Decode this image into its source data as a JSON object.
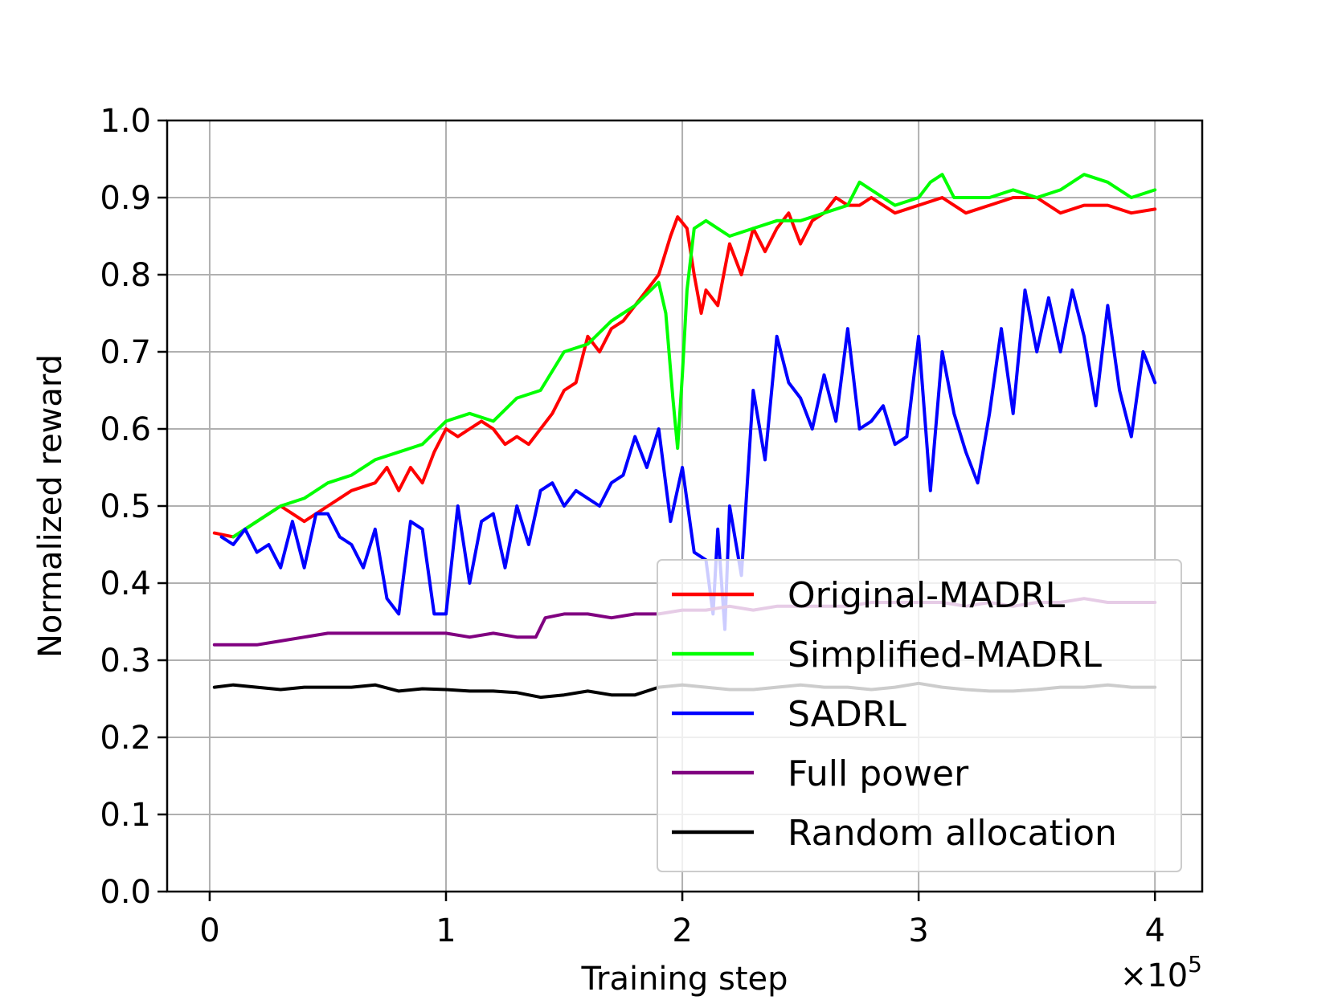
{
  "chart_data": {
    "type": "line",
    "xlabel": "Training step",
    "ylabel": "Normalized reward",
    "x_multiplier_label": "×10",
    "x_multiplier_exp": "5",
    "xlim": [
      -0.18,
      4.2
    ],
    "ylim": [
      0.0,
      1.0
    ],
    "xticks": [
      0,
      1,
      2,
      3,
      4
    ],
    "xtick_labels": [
      "0",
      "1",
      "2",
      "3",
      "4"
    ],
    "yticks": [
      0.0,
      0.1,
      0.2,
      0.3,
      0.4,
      0.5,
      0.6,
      0.7,
      0.8,
      0.9,
      1.0
    ],
    "ytick_labels": [
      "0.0",
      "0.1",
      "0.2",
      "0.3",
      "0.4",
      "0.5",
      "0.6",
      "0.7",
      "0.8",
      "0.9",
      "1.0"
    ],
    "grid": true,
    "legend_position": "lower-right",
    "series": [
      {
        "name": "Original-MADRL",
        "color": "#ff0000",
        "x": [
          0.02,
          0.1,
          0.2,
          0.3,
          0.35,
          0.4,
          0.5,
          0.55,
          0.6,
          0.7,
          0.75,
          0.8,
          0.85,
          0.9,
          0.95,
          1.0,
          1.05,
          1.1,
          1.15,
          1.2,
          1.25,
          1.3,
          1.35,
          1.4,
          1.45,
          1.5,
          1.55,
          1.6,
          1.65,
          1.7,
          1.75,
          1.8,
          1.85,
          1.9,
          1.95,
          1.98,
          2.02,
          2.05,
          2.08,
          2.1,
          2.15,
          2.2,
          2.25,
          2.3,
          2.35,
          2.4,
          2.45,
          2.5,
          2.55,
          2.6,
          2.65,
          2.7,
          2.75,
          2.8,
          2.9,
          3.0,
          3.1,
          3.2,
          3.3,
          3.4,
          3.5,
          3.6,
          3.7,
          3.8,
          3.9,
          4.0
        ],
        "y": [
          0.465,
          0.46,
          0.48,
          0.5,
          0.49,
          0.48,
          0.5,
          0.51,
          0.52,
          0.53,
          0.55,
          0.52,
          0.55,
          0.53,
          0.57,
          0.6,
          0.59,
          0.6,
          0.61,
          0.6,
          0.58,
          0.59,
          0.58,
          0.6,
          0.62,
          0.65,
          0.66,
          0.72,
          0.7,
          0.73,
          0.74,
          0.76,
          0.78,
          0.8,
          0.85,
          0.875,
          0.86,
          0.8,
          0.75,
          0.78,
          0.76,
          0.84,
          0.8,
          0.86,
          0.83,
          0.86,
          0.88,
          0.84,
          0.87,
          0.88,
          0.9,
          0.89,
          0.89,
          0.9,
          0.88,
          0.89,
          0.9,
          0.88,
          0.89,
          0.9,
          0.9,
          0.88,
          0.89,
          0.89,
          0.88,
          0.885
        ]
      },
      {
        "name": "Simplified-MADRL",
        "color": "#00ff00",
        "x": [
          0.1,
          0.2,
          0.3,
          0.4,
          0.5,
          0.6,
          0.7,
          0.8,
          0.9,
          1.0,
          1.1,
          1.2,
          1.3,
          1.4,
          1.5,
          1.6,
          1.7,
          1.8,
          1.9,
          1.93,
          1.96,
          1.98,
          2.0,
          2.02,
          2.05,
          2.1,
          2.15,
          2.2,
          2.3,
          2.4,
          2.5,
          2.6,
          2.7,
          2.75,
          2.8,
          2.9,
          3.0,
          3.05,
          3.1,
          3.15,
          3.2,
          3.3,
          3.4,
          3.5,
          3.6,
          3.7,
          3.8,
          3.9,
          4.0
        ],
        "y": [
          0.46,
          0.48,
          0.5,
          0.51,
          0.53,
          0.54,
          0.56,
          0.57,
          0.58,
          0.61,
          0.62,
          0.61,
          0.64,
          0.65,
          0.7,
          0.71,
          0.74,
          0.76,
          0.79,
          0.75,
          0.64,
          0.575,
          0.67,
          0.78,
          0.86,
          0.87,
          0.86,
          0.85,
          0.86,
          0.87,
          0.87,
          0.88,
          0.89,
          0.92,
          0.91,
          0.89,
          0.9,
          0.92,
          0.93,
          0.9,
          0.9,
          0.9,
          0.91,
          0.9,
          0.91,
          0.93,
          0.92,
          0.9,
          0.91
        ]
      },
      {
        "name": "SADRL",
        "color": "#0000ff",
        "x": [
          0.05,
          0.1,
          0.15,
          0.2,
          0.25,
          0.3,
          0.35,
          0.4,
          0.45,
          0.5,
          0.55,
          0.6,
          0.65,
          0.7,
          0.75,
          0.8,
          0.85,
          0.9,
          0.95,
          1.0,
          1.05,
          1.1,
          1.15,
          1.2,
          1.25,
          1.3,
          1.35,
          1.4,
          1.45,
          1.5,
          1.55,
          1.6,
          1.65,
          1.7,
          1.75,
          1.8,
          1.85,
          1.9,
          1.95,
          2.0,
          2.05,
          2.1,
          2.13,
          2.15,
          2.18,
          2.2,
          2.25,
          2.3,
          2.35,
          2.4,
          2.45,
          2.5,
          2.55,
          2.6,
          2.65,
          2.7,
          2.75,
          2.8,
          2.85,
          2.9,
          2.95,
          3.0,
          3.05,
          3.1,
          3.15,
          3.2,
          3.25,
          3.3,
          3.35,
          3.4,
          3.45,
          3.5,
          3.55,
          3.6,
          3.65,
          3.7,
          3.75,
          3.8,
          3.85,
          3.9,
          3.95,
          4.0
        ],
        "y": [
          0.46,
          0.45,
          0.47,
          0.44,
          0.45,
          0.42,
          0.48,
          0.42,
          0.49,
          0.49,
          0.46,
          0.45,
          0.42,
          0.47,
          0.38,
          0.36,
          0.48,
          0.47,
          0.36,
          0.36,
          0.5,
          0.4,
          0.48,
          0.49,
          0.42,
          0.5,
          0.45,
          0.52,
          0.53,
          0.5,
          0.52,
          0.51,
          0.5,
          0.53,
          0.54,
          0.59,
          0.55,
          0.6,
          0.48,
          0.55,
          0.44,
          0.43,
          0.36,
          0.47,
          0.34,
          0.5,
          0.41,
          0.65,
          0.56,
          0.72,
          0.66,
          0.64,
          0.6,
          0.67,
          0.61,
          0.73,
          0.6,
          0.61,
          0.63,
          0.58,
          0.59,
          0.72,
          0.52,
          0.7,
          0.62,
          0.57,
          0.53,
          0.62,
          0.73,
          0.62,
          0.78,
          0.7,
          0.77,
          0.7,
          0.78,
          0.72,
          0.63,
          0.76,
          0.65,
          0.59,
          0.7,
          0.66
        ]
      },
      {
        "name": "Full power",
        "color": "#800080",
        "x": [
          0.02,
          0.1,
          0.2,
          0.3,
          0.4,
          0.5,
          0.6,
          0.7,
          0.8,
          0.9,
          1.0,
          1.1,
          1.2,
          1.3,
          1.38,
          1.42,
          1.5,
          1.55,
          1.6,
          1.7,
          1.8,
          1.9,
          2.0,
          2.1,
          2.2,
          2.3,
          2.4,
          2.5,
          2.6,
          2.7,
          2.8,
          2.9,
          3.0,
          3.1,
          3.2,
          3.3,
          3.4,
          3.5,
          3.6,
          3.7,
          3.8,
          3.9,
          4.0
        ],
        "y": [
          0.32,
          0.32,
          0.32,
          0.325,
          0.33,
          0.335,
          0.335,
          0.335,
          0.335,
          0.335,
          0.335,
          0.33,
          0.335,
          0.33,
          0.33,
          0.355,
          0.36,
          0.36,
          0.36,
          0.355,
          0.36,
          0.36,
          0.365,
          0.365,
          0.37,
          0.365,
          0.37,
          0.37,
          0.37,
          0.37,
          0.375,
          0.375,
          0.375,
          0.375,
          0.37,
          0.375,
          0.37,
          0.375,
          0.375,
          0.38,
          0.375,
          0.375,
          0.375
        ]
      },
      {
        "name": "Random allocation",
        "color": "#000000",
        "x": [
          0.02,
          0.1,
          0.2,
          0.3,
          0.4,
          0.5,
          0.6,
          0.7,
          0.8,
          0.9,
          1.0,
          1.1,
          1.2,
          1.3,
          1.4,
          1.5,
          1.6,
          1.7,
          1.8,
          1.9,
          2.0,
          2.1,
          2.2,
          2.3,
          2.4,
          2.5,
          2.6,
          2.7,
          2.8,
          2.9,
          3.0,
          3.1,
          3.2,
          3.3,
          3.4,
          3.5,
          3.6,
          3.7,
          3.8,
          3.9,
          4.0
        ],
        "y": [
          0.265,
          0.268,
          0.265,
          0.262,
          0.265,
          0.265,
          0.265,
          0.268,
          0.26,
          0.263,
          0.262,
          0.26,
          0.26,
          0.258,
          0.252,
          0.255,
          0.26,
          0.255,
          0.255,
          0.265,
          0.268,
          0.265,
          0.262,
          0.262,
          0.265,
          0.268,
          0.265,
          0.265,
          0.262,
          0.265,
          0.27,
          0.265,
          0.262,
          0.26,
          0.26,
          0.262,
          0.265,
          0.265,
          0.268,
          0.265,
          0.265
        ]
      }
    ]
  }
}
